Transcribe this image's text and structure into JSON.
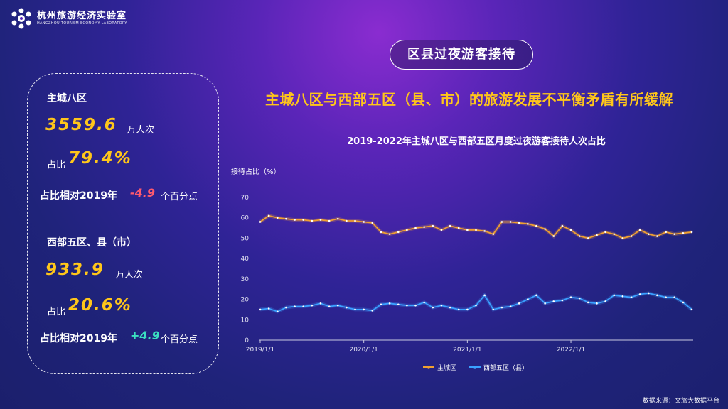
{
  "logo": {
    "name_cn": "杭州旅游经济实验室",
    "name_en": "HANGZHOU TOURISM ECONOMY LABORATORY"
  },
  "section_title": "区县过夜游客接待",
  "headline": "主城八区与西部五区（县、市）的旅游发展不平衡矛盾有所缓解",
  "panel": {
    "main": {
      "label": "主城八区",
      "value": "3559.6",
      "unit": "万人次",
      "share_label": "占比",
      "share": "79.4%",
      "diff_label": "占比相对2019年",
      "diff": "-4.9",
      "diff_unit": "个百分点"
    },
    "west": {
      "label": "西部五区、县（市）",
      "value": "933.9",
      "unit": "万人次",
      "share_label": "占比",
      "share": "20.6%",
      "diff_label": "占比相对2019年",
      "diff": "+4.9",
      "diff_unit": "个百分点"
    }
  },
  "source": "数据来源：文旅大数据平台",
  "chart_data": {
    "type": "line",
    "title": "2019-2022年主城八区与西部五区月度过夜游客接待人次占比",
    "ylabel": "接待占比（%）",
    "ylim": [
      0,
      70
    ],
    "yticks": [
      0,
      10,
      20,
      30,
      40,
      50,
      60,
      70
    ],
    "x_tick_labels": [
      "2019/1/1",
      "2020/1/1",
      "2021/1/1",
      "2022/1/1"
    ],
    "x_tick_index": [
      0,
      12,
      24,
      36
    ],
    "grid": false,
    "legend_position": "bottom",
    "colors": {
      "main": "#f0a030",
      "west": "#3aa0ff"
    },
    "series": [
      {
        "name": "主城区",
        "values": [
          58,
          61,
          60,
          59.5,
          59,
          59,
          58.5,
          59,
          58.5,
          59.5,
          58.5,
          58.5,
          58,
          57.5,
          53,
          52,
          53,
          54,
          55,
          55.5,
          56,
          54,
          56,
          55,
          54,
          54,
          53.5,
          52,
          58,
          58,
          57.5,
          57,
          56,
          54.5,
          51,
          56,
          54,
          51,
          50,
          51.5,
          53,
          52,
          50,
          51,
          54,
          52,
          51,
          53,
          52,
          52.5,
          53
        ]
      },
      {
        "name": "西部五区（县）",
        "values": [
          15,
          15.5,
          14,
          16,
          16.5,
          16.5,
          17,
          18,
          16.5,
          17,
          16,
          15,
          15,
          14.5,
          17.5,
          18,
          17.5,
          17,
          17,
          18.5,
          16,
          17,
          16,
          15,
          15,
          17,
          22,
          15,
          16,
          16.5,
          18,
          20,
          22,
          18,
          19,
          19.5,
          21,
          20.5,
          18.5,
          18,
          19,
          22,
          21.5,
          21,
          22.5,
          23,
          22,
          21,
          21,
          18.5,
          15
        ]
      }
    ]
  }
}
